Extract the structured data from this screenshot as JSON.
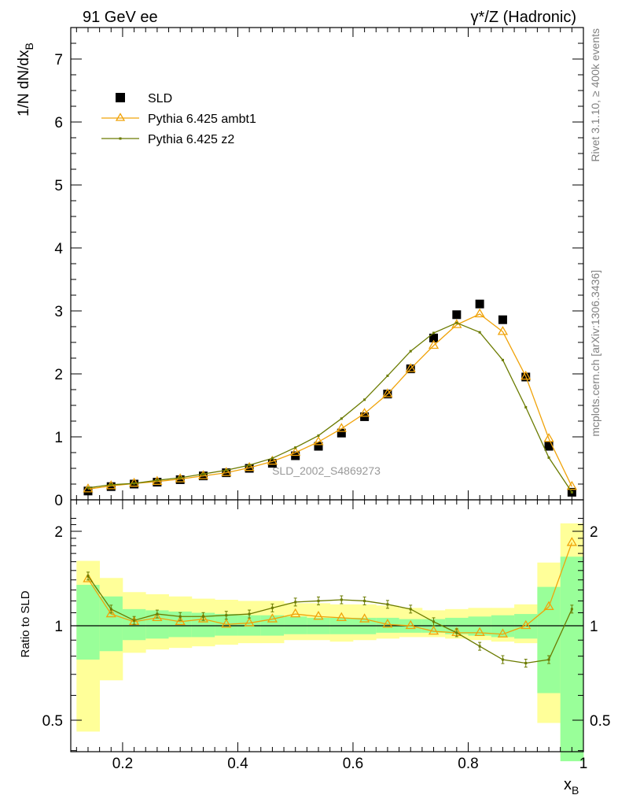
{
  "header": {
    "left": "91 GeV ee",
    "right": "γ*/Z (Hadronic)"
  },
  "side_labels": {
    "top": "Rivet 3.1.10, ≥ 400k events",
    "bottom": "mcplots.cern.ch [arXiv:1306.3436]"
  },
  "watermark": "SLD_2002_S4869273",
  "colors": {
    "data": "#000000",
    "ambt1": "#f0a30a",
    "z2": "#6b7b00",
    "band_outer": "#ffff99",
    "band_inner": "#99ff99"
  },
  "chart_data": [
    {
      "type": "line",
      "panel": "main",
      "ylabel": "1/N dN/dx_B",
      "xlim": [
        0.11,
        1.0
      ],
      "ylim": [
        0,
        7.5
      ],
      "y_ticks": [
        "0",
        "1",
        "2",
        "3",
        "4",
        "5",
        "6",
        "7"
      ],
      "legend_placement": "top-left",
      "x": [
        0.14,
        0.18,
        0.22,
        0.26,
        0.3,
        0.34,
        0.38,
        0.42,
        0.46,
        0.5,
        0.54,
        0.58,
        0.62,
        0.66,
        0.7,
        0.74,
        0.78,
        0.82,
        0.86,
        0.9,
        0.94,
        0.98
      ],
      "series": [
        {
          "name": "SLD",
          "style": "data",
          "values": [
            0.14,
            0.21,
            0.25,
            0.28,
            0.32,
            0.38,
            0.43,
            0.5,
            0.58,
            0.7,
            0.85,
            1.06,
            1.32,
            1.68,
            2.08,
            2.57,
            2.94,
            3.11,
            2.86,
            1.95,
            0.85,
            0.12
          ]
        },
        {
          "name": "Pythia 6.425 ambt1",
          "style": "ambt1",
          "values": [
            0.17,
            0.22,
            0.26,
            0.29,
            0.33,
            0.38,
            0.43,
            0.51,
            0.61,
            0.75,
            0.92,
            1.13,
            1.37,
            1.68,
            2.08,
            2.45,
            2.78,
            2.95,
            2.67,
            1.96,
            0.97,
            0.21
          ]
        },
        {
          "name": "Pythia 6.425 z2",
          "style": "z2",
          "values": [
            0.19,
            0.24,
            0.26,
            0.31,
            0.35,
            0.41,
            0.47,
            0.55,
            0.66,
            0.83,
            1.02,
            1.29,
            1.59,
            1.97,
            2.36,
            2.65,
            2.81,
            2.66,
            2.22,
            1.47,
            0.67,
            0.12
          ]
        }
      ]
    },
    {
      "type": "line",
      "panel": "ratio",
      "ylabel": "Ratio to SLD",
      "xlabel": "x_B",
      "xlim": [
        0.11,
        1.0
      ],
      "ylim": [
        0.35,
        2.3
      ],
      "y_ticks": [
        "0.5",
        "1",
        "2"
      ],
      "x_ticks": [
        "0.2",
        "0.4",
        "0.6",
        "0.8",
        "1"
      ],
      "x": [
        0.14,
        0.18,
        0.22,
        0.26,
        0.3,
        0.34,
        0.38,
        0.42,
        0.46,
        0.5,
        0.54,
        0.58,
        0.62,
        0.66,
        0.7,
        0.74,
        0.78,
        0.82,
        0.86,
        0.9,
        0.94,
        0.98
      ],
      "bands": {
        "bin_edges": [
          0.12,
          0.16,
          0.2,
          0.24,
          0.28,
          0.32,
          0.36,
          0.4,
          0.44,
          0.48,
          0.52,
          0.56,
          0.6,
          0.64,
          0.68,
          0.72,
          0.76,
          0.8,
          0.84,
          0.88,
          0.92,
          0.96,
          1.0
        ],
        "outer_low": [
          0.46,
          0.67,
          0.82,
          0.84,
          0.85,
          0.86,
          0.87,
          0.88,
          0.88,
          0.9,
          0.9,
          0.89,
          0.9,
          0.91,
          0.92,
          0.92,
          0.91,
          0.9,
          0.89,
          0.88,
          0.49,
          0.38
        ],
        "outer_high": [
          1.61,
          1.42,
          1.28,
          1.26,
          1.24,
          1.22,
          1.21,
          1.2,
          1.2,
          1.18,
          1.18,
          1.17,
          1.17,
          1.16,
          1.14,
          1.12,
          1.13,
          1.14,
          1.14,
          1.17,
          1.59,
          2.12
        ],
        "inner_low": [
          0.78,
          0.83,
          0.9,
          0.91,
          0.92,
          0.92,
          0.93,
          0.93,
          0.93,
          0.94,
          0.94,
          0.94,
          0.94,
          0.95,
          0.95,
          0.95,
          0.94,
          0.93,
          0.92,
          0.91,
          0.61,
          0.37
        ],
        "inner_high": [
          1.35,
          1.24,
          1.13,
          1.12,
          1.11,
          1.1,
          1.09,
          1.08,
          1.08,
          1.07,
          1.06,
          1.06,
          1.06,
          1.06,
          1.05,
          1.05,
          1.06,
          1.07,
          1.08,
          1.09,
          1.33,
          1.66
        ]
      },
      "series": [
        {
          "name": "Pythia 6.425 ambt1",
          "style": "ambt1",
          "values": [
            1.41,
            1.09,
            1.03,
            1.06,
            1.03,
            1.05,
            1.01,
            1.02,
            1.05,
            1.09,
            1.07,
            1.06,
            1.05,
            1.01,
            1.0,
            0.96,
            0.95,
            0.95,
            0.94,
            1.0,
            1.15,
            1.84
          ]
        },
        {
          "name": "Pythia 6.425 z2",
          "style": "z2",
          "values": [
            1.44,
            1.13,
            1.04,
            1.09,
            1.07,
            1.07,
            1.08,
            1.09,
            1.14,
            1.19,
            1.2,
            1.21,
            1.2,
            1.17,
            1.13,
            1.03,
            0.95,
            0.86,
            0.78,
            0.76,
            0.78,
            1.13
          ]
        }
      ]
    }
  ]
}
